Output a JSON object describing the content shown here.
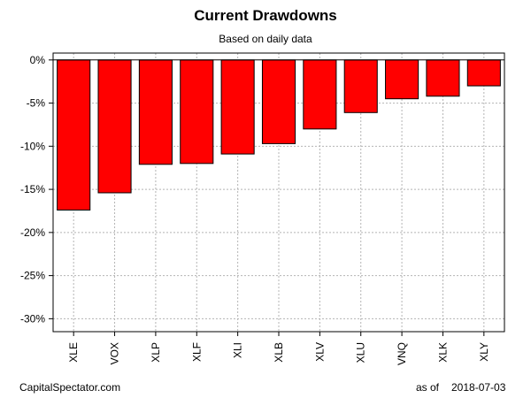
{
  "chart_data": {
    "type": "bar",
    "title": "Current Drawdowns",
    "subtitle": "Based on daily data",
    "xlabel": "",
    "ylabel": "",
    "categories": [
      "XLE",
      "VOX",
      "XLP",
      "XLF",
      "XLI",
      "XLB",
      "XLV",
      "XLU",
      "VNQ",
      "XLK",
      "XLY"
    ],
    "values": [
      -17.4,
      -15.4,
      -12.1,
      -12.0,
      -10.9,
      -9.7,
      -8.0,
      -6.1,
      -4.5,
      -4.2,
      -3.0
    ],
    "unit": "%",
    "ylim": [
      -31.5,
      0.8
    ],
    "yticks": [
      0,
      -5,
      -10,
      -15,
      -20,
      -25,
      -30
    ],
    "ytick_labels": [
      "0%",
      "-5%",
      "-10%",
      "-15%",
      "-20%",
      "-25%",
      "-30%"
    ],
    "grid": true,
    "bar_color": "#ff0000"
  },
  "footer": {
    "source": "CapitalSpectator.com",
    "as_of_label": "as of",
    "date": "2018-07-03"
  }
}
